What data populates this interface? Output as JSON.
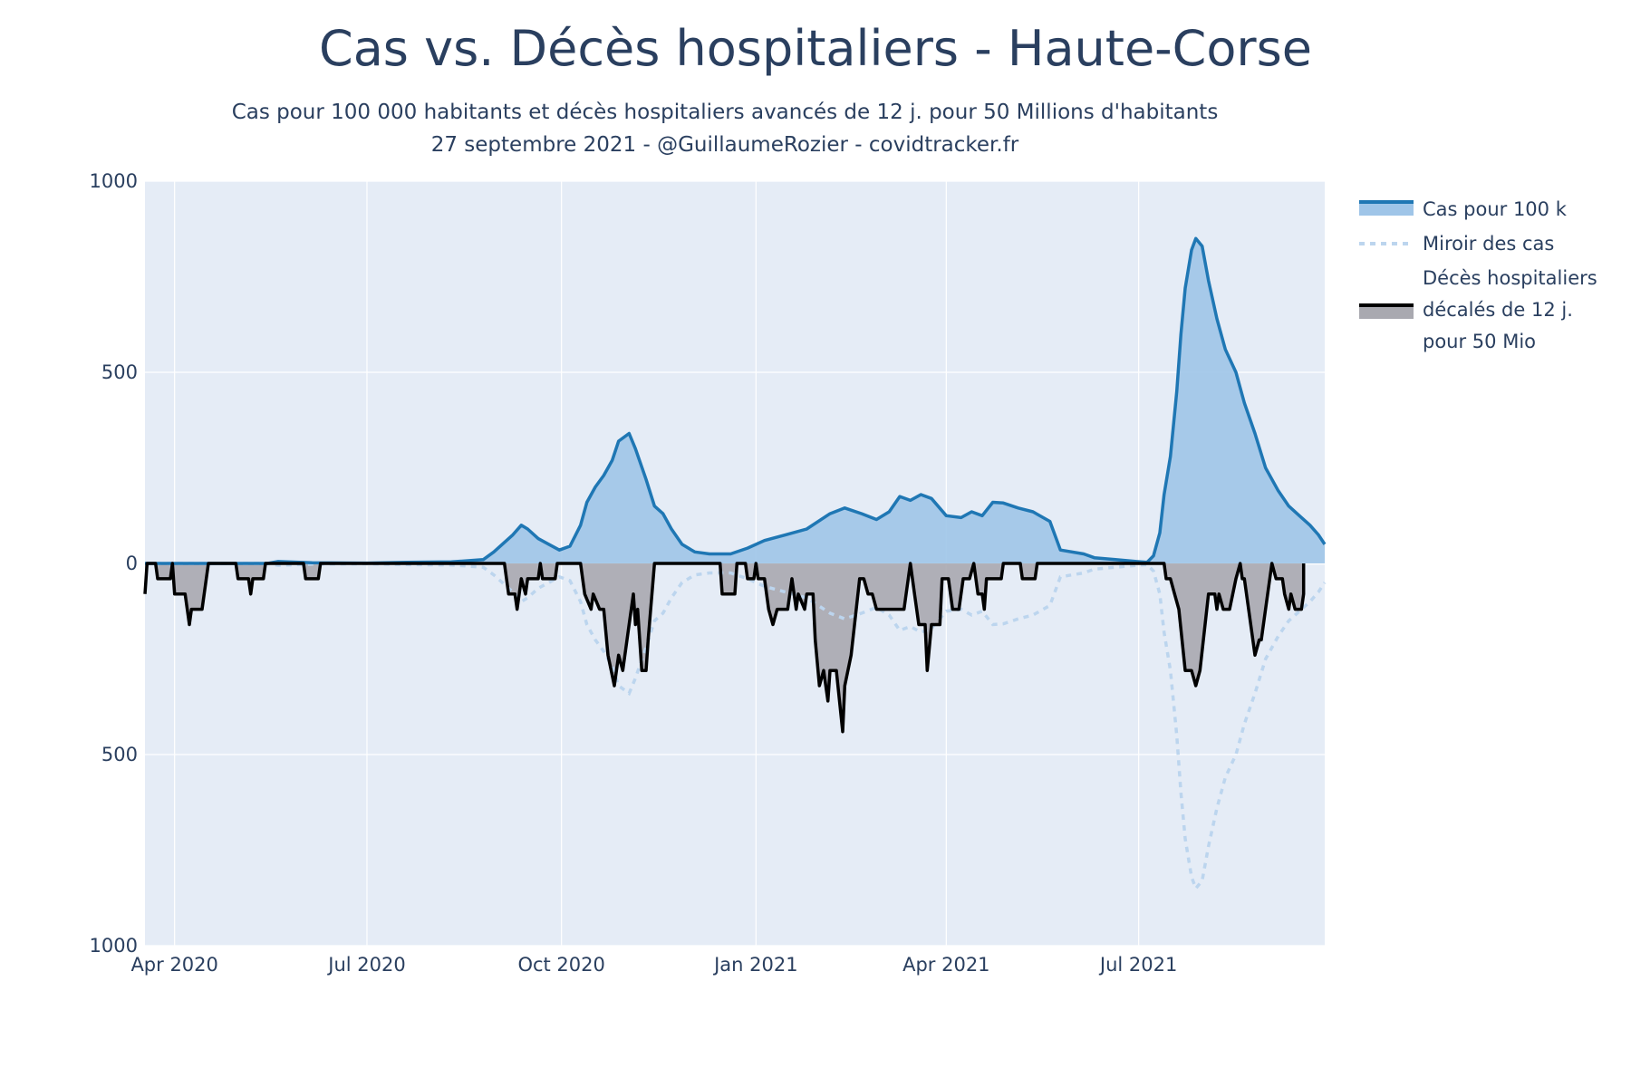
{
  "chart_data": {
    "type": "area",
    "title": "Cas vs. Décès hospitaliers - Haute-Corse",
    "subtitle_line1": "Cas pour 100 000 habitants et décès hospitaliers avancés de 12 j. pour 50 Millions d'habitants",
    "subtitle_line2": "27 septembre 2021 - @GuillaumeRozier - covidtracker.fr",
    "x_range": [
      "2020-03-18",
      "2021-09-27"
    ],
    "y_range": [
      -1000,
      1000
    ],
    "y_ticks": [
      {
        "value": 1000,
        "label": "1000"
      },
      {
        "value": 500,
        "label": "500"
      },
      {
        "value": 0,
        "label": "0"
      },
      {
        "value": -500,
        "label": "500"
      },
      {
        "value": -1000,
        "label": "1000"
      }
    ],
    "x_ticks": [
      {
        "date": "2020-04-01",
        "label": "Apr 2020"
      },
      {
        "date": "2020-07-01",
        "label": "Jul 2020"
      },
      {
        "date": "2020-10-01",
        "label": "Oct 2020"
      },
      {
        "date": "2021-01-01",
        "label": "Jan 2021"
      },
      {
        "date": "2021-04-01",
        "label": "Apr 2021"
      },
      {
        "date": "2021-07-01",
        "label": "Jul 2021"
      }
    ],
    "grid": true,
    "legend_position": "top-right",
    "colors": {
      "plot_bg": "#e5ecf6",
      "cases_line": "#1f77b4",
      "cases_fill": "#9fc5e8",
      "mirror_line": "#bcd5ee",
      "deaths_line": "#000000",
      "deaths_fill": "#a9a9b0"
    },
    "series": [
      {
        "name": "Cas pour 100 k",
        "points": [
          [
            "2020-03-18",
            0
          ],
          [
            "2020-05-15",
            0
          ],
          [
            "2020-05-20",
            5
          ],
          [
            "2020-06-05",
            2
          ],
          [
            "2020-07-01",
            1
          ],
          [
            "2020-07-20",
            3
          ],
          [
            "2020-08-10",
            4
          ],
          [
            "2020-08-25",
            10
          ],
          [
            "2020-08-30",
            30
          ],
          [
            "2020-09-03",
            50
          ],
          [
            "2020-09-08",
            75
          ],
          [
            "2020-09-12",
            100
          ],
          [
            "2020-09-15",
            90
          ],
          [
            "2020-09-20",
            65
          ],
          [
            "2020-09-25",
            50
          ],
          [
            "2020-09-30",
            35
          ],
          [
            "2020-10-05",
            45
          ],
          [
            "2020-10-10",
            100
          ],
          [
            "2020-10-13",
            160
          ],
          [
            "2020-10-17",
            200
          ],
          [
            "2020-10-21",
            230
          ],
          [
            "2020-10-25",
            270
          ],
          [
            "2020-10-28",
            320
          ],
          [
            "2020-11-02",
            340
          ],
          [
            "2020-11-05",
            300
          ],
          [
            "2020-11-10",
            220
          ],
          [
            "2020-11-14",
            150
          ],
          [
            "2020-11-18",
            130
          ],
          [
            "2020-11-22",
            90
          ],
          [
            "2020-11-27",
            50
          ],
          [
            "2020-12-03",
            30
          ],
          [
            "2020-12-10",
            25
          ],
          [
            "2020-12-20",
            25
          ],
          [
            "2020-12-28",
            40
          ],
          [
            "2021-01-05",
            60
          ],
          [
            "2021-01-15",
            75
          ],
          [
            "2021-01-25",
            90
          ],
          [
            "2021-02-05",
            130
          ],
          [
            "2021-02-12",
            145
          ],
          [
            "2021-02-20",
            130
          ],
          [
            "2021-02-27",
            115
          ],
          [
            "2021-03-05",
            135
          ],
          [
            "2021-03-10",
            175
          ],
          [
            "2021-03-15",
            165
          ],
          [
            "2021-03-20",
            180
          ],
          [
            "2021-03-25",
            170
          ],
          [
            "2021-04-01",
            125
          ],
          [
            "2021-04-08",
            120
          ],
          [
            "2021-04-13",
            135
          ],
          [
            "2021-04-18",
            125
          ],
          [
            "2021-04-23",
            160
          ],
          [
            "2021-04-28",
            158
          ],
          [
            "2021-05-05",
            145
          ],
          [
            "2021-05-12",
            135
          ],
          [
            "2021-05-20",
            110
          ],
          [
            "2021-05-25",
            35
          ],
          [
            "2021-06-05",
            25
          ],
          [
            "2021-06-10",
            15
          ],
          [
            "2021-06-20",
            10
          ],
          [
            "2021-06-30",
            5
          ],
          [
            "2021-07-05",
            3
          ],
          [
            "2021-07-08",
            20
          ],
          [
            "2021-07-11",
            80
          ],
          [
            "2021-07-13",
            180
          ],
          [
            "2021-07-16",
            280
          ],
          [
            "2021-07-19",
            450
          ],
          [
            "2021-07-21",
            600
          ],
          [
            "2021-07-23",
            720
          ],
          [
            "2021-07-26",
            820
          ],
          [
            "2021-07-28",
            850
          ],
          [
            "2021-07-31",
            830
          ],
          [
            "2021-08-03",
            740
          ],
          [
            "2021-08-07",
            640
          ],
          [
            "2021-08-11",
            560
          ],
          [
            "2021-08-16",
            500
          ],
          [
            "2021-08-20",
            420
          ],
          [
            "2021-08-25",
            340
          ],
          [
            "2021-08-30",
            250
          ],
          [
            "2021-09-05",
            190
          ],
          [
            "2021-09-10",
            150
          ],
          [
            "2021-09-15",
            125
          ],
          [
            "2021-09-20",
            100
          ],
          [
            "2021-09-24",
            75
          ],
          [
            "2021-09-27",
            50
          ]
        ]
      },
      {
        "name": "Miroir des cas",
        "mirror_of": "Cas pour 100 k"
      },
      {
        "name": "Décès hospitaliers décalés de 12 j. pour 50 Mio",
        "name_lines": [
          "Décès hospitaliers",
          "décalés de 12 j.",
          "pour 50 Mio"
        ],
        "points": [
          [
            "2020-03-18",
            -80
          ],
          [
            "2020-03-19",
            0
          ],
          [
            "2020-03-23",
            0
          ],
          [
            "2020-03-24",
            -40
          ],
          [
            "2020-03-30",
            -40
          ],
          [
            "2020-03-31",
            0
          ],
          [
            "2020-04-01",
            -80
          ],
          [
            "2020-04-06",
            -80
          ],
          [
            "2020-04-08",
            -160
          ],
          [
            "2020-04-09",
            -120
          ],
          [
            "2020-04-14",
            -120
          ],
          [
            "2020-04-17",
            0
          ],
          [
            "2020-04-30",
            0
          ],
          [
            "2020-05-01",
            -40
          ],
          [
            "2020-05-06",
            -40
          ],
          [
            "2020-05-07",
            -80
          ],
          [
            "2020-05-08",
            -40
          ],
          [
            "2020-05-13",
            -40
          ],
          [
            "2020-05-14",
            0
          ],
          [
            "2020-06-01",
            0
          ],
          [
            "2020-06-02",
            -40
          ],
          [
            "2020-06-08",
            -40
          ],
          [
            "2020-06-09",
            0
          ],
          [
            "2020-09-04",
            0
          ],
          [
            "2020-09-06",
            -80
          ],
          [
            "2020-09-09",
            -80
          ],
          [
            "2020-09-10",
            -120
          ],
          [
            "2020-09-11",
            -80
          ],
          [
            "2020-09-12",
            -40
          ],
          [
            "2020-09-14",
            -80
          ],
          [
            "2020-09-15",
            -40
          ],
          [
            "2020-09-20",
            -40
          ],
          [
            "2020-09-21",
            0
          ],
          [
            "2020-09-22",
            -40
          ],
          [
            "2020-09-28",
            -40
          ],
          [
            "2020-09-29",
            0
          ],
          [
            "2020-10-10",
            0
          ],
          [
            "2020-10-12",
            -80
          ],
          [
            "2020-10-15",
            -120
          ],
          [
            "2020-10-16",
            -80
          ],
          [
            "2020-10-19",
            -120
          ],
          [
            "2020-10-21",
            -120
          ],
          [
            "2020-10-23",
            -240
          ],
          [
            "2020-10-26",
            -320
          ],
          [
            "2020-10-28",
            -240
          ],
          [
            "2020-10-30",
            -280
          ],
          [
            "2020-11-02",
            -160
          ],
          [
            "2020-11-04",
            -80
          ],
          [
            "2020-11-05",
            -160
          ],
          [
            "2020-11-06",
            -120
          ],
          [
            "2020-11-07",
            -200
          ],
          [
            "2020-11-08",
            -280
          ],
          [
            "2020-11-10",
            -280
          ],
          [
            "2020-11-11",
            -200
          ],
          [
            "2020-11-14",
            0
          ],
          [
            "2020-12-15",
            0
          ],
          [
            "2020-12-16",
            -80
          ],
          [
            "2020-12-22",
            -80
          ],
          [
            "2020-12-23",
            0
          ],
          [
            "2020-12-27",
            0
          ],
          [
            "2020-12-28",
            -40
          ],
          [
            "2020-12-31",
            -40
          ],
          [
            "2021-01-01",
            0
          ],
          [
            "2021-01-02",
            -40
          ],
          [
            "2021-01-05",
            -40
          ],
          [
            "2021-01-07",
            -120
          ],
          [
            "2021-01-09",
            -160
          ],
          [
            "2021-01-11",
            -120
          ],
          [
            "2021-01-16",
            -120
          ],
          [
            "2021-01-18",
            -40
          ],
          [
            "2021-01-20",
            -120
          ],
          [
            "2021-01-21",
            -80
          ],
          [
            "2021-01-24",
            -120
          ],
          [
            "2021-01-25",
            -80
          ],
          [
            "2021-01-28",
            -80
          ],
          [
            "2021-01-29",
            -200
          ],
          [
            "2021-01-31",
            -320
          ],
          [
            "2021-02-02",
            -280
          ],
          [
            "2021-02-04",
            -360
          ],
          [
            "2021-02-05",
            -280
          ],
          [
            "2021-02-08",
            -280
          ],
          [
            "2021-02-11",
            -440
          ],
          [
            "2021-02-12",
            -320
          ],
          [
            "2021-02-15",
            -240
          ],
          [
            "2021-02-19",
            -40
          ],
          [
            "2021-02-21",
            -40
          ],
          [
            "2021-02-23",
            -80
          ],
          [
            "2021-02-25",
            -80
          ],
          [
            "2021-02-27",
            -120
          ],
          [
            "2021-03-12",
            -120
          ],
          [
            "2021-03-13",
            -80
          ],
          [
            "2021-03-15",
            0
          ],
          [
            "2021-03-17",
            -80
          ],
          [
            "2021-03-19",
            -160
          ],
          [
            "2021-03-22",
            -160
          ],
          [
            "2021-03-23",
            -280
          ],
          [
            "2021-03-25",
            -160
          ],
          [
            "2021-03-29",
            -160
          ],
          [
            "2021-03-30",
            -40
          ],
          [
            "2021-04-02",
            -40
          ],
          [
            "2021-04-04",
            -120
          ],
          [
            "2021-04-07",
            -120
          ],
          [
            "2021-04-09",
            -40
          ],
          [
            "2021-04-12",
            -40
          ],
          [
            "2021-04-14",
            0
          ],
          [
            "2021-04-16",
            -80
          ],
          [
            "2021-04-18",
            -80
          ],
          [
            "2021-04-19",
            -120
          ],
          [
            "2021-04-20",
            -40
          ],
          [
            "2021-04-27",
            -40
          ],
          [
            "2021-04-28",
            0
          ],
          [
            "2021-05-06",
            0
          ],
          [
            "2021-05-07",
            -40
          ],
          [
            "2021-05-13",
            -40
          ],
          [
            "2021-05-14",
            0
          ],
          [
            "2021-07-13",
            0
          ],
          [
            "2021-07-14",
            -40
          ],
          [
            "2021-07-16",
            -40
          ],
          [
            "2021-07-18",
            -80
          ],
          [
            "2021-07-20",
            -120
          ],
          [
            "2021-07-23",
            -280
          ],
          [
            "2021-07-26",
            -280
          ],
          [
            "2021-07-28",
            -320
          ],
          [
            "2021-07-30",
            -280
          ],
          [
            "2021-08-03",
            -80
          ],
          [
            "2021-08-06",
            -80
          ],
          [
            "2021-08-07",
            -120
          ],
          [
            "2021-08-08",
            -80
          ],
          [
            "2021-08-10",
            -120
          ],
          [
            "2021-08-13",
            -120
          ],
          [
            "2021-08-16",
            -40
          ],
          [
            "2021-08-18",
            0
          ],
          [
            "2021-08-19",
            -40
          ],
          [
            "2021-08-20",
            -40
          ],
          [
            "2021-08-22",
            -120
          ],
          [
            "2021-08-25",
            -240
          ],
          [
            "2021-08-27",
            -200
          ],
          [
            "2021-08-28",
            -200
          ],
          [
            "2021-08-31",
            -80
          ],
          [
            "2021-09-02",
            0
          ],
          [
            "2021-09-04",
            -40
          ],
          [
            "2021-09-07",
            -40
          ],
          [
            "2021-09-08",
            -80
          ],
          [
            "2021-09-10",
            -120
          ],
          [
            "2021-09-11",
            -80
          ],
          [
            "2021-09-13",
            -120
          ],
          [
            "2021-09-16",
            -120
          ],
          [
            "2021-09-17",
            -80
          ],
          [
            "2021-09-17",
            0
          ]
        ]
      }
    ]
  }
}
